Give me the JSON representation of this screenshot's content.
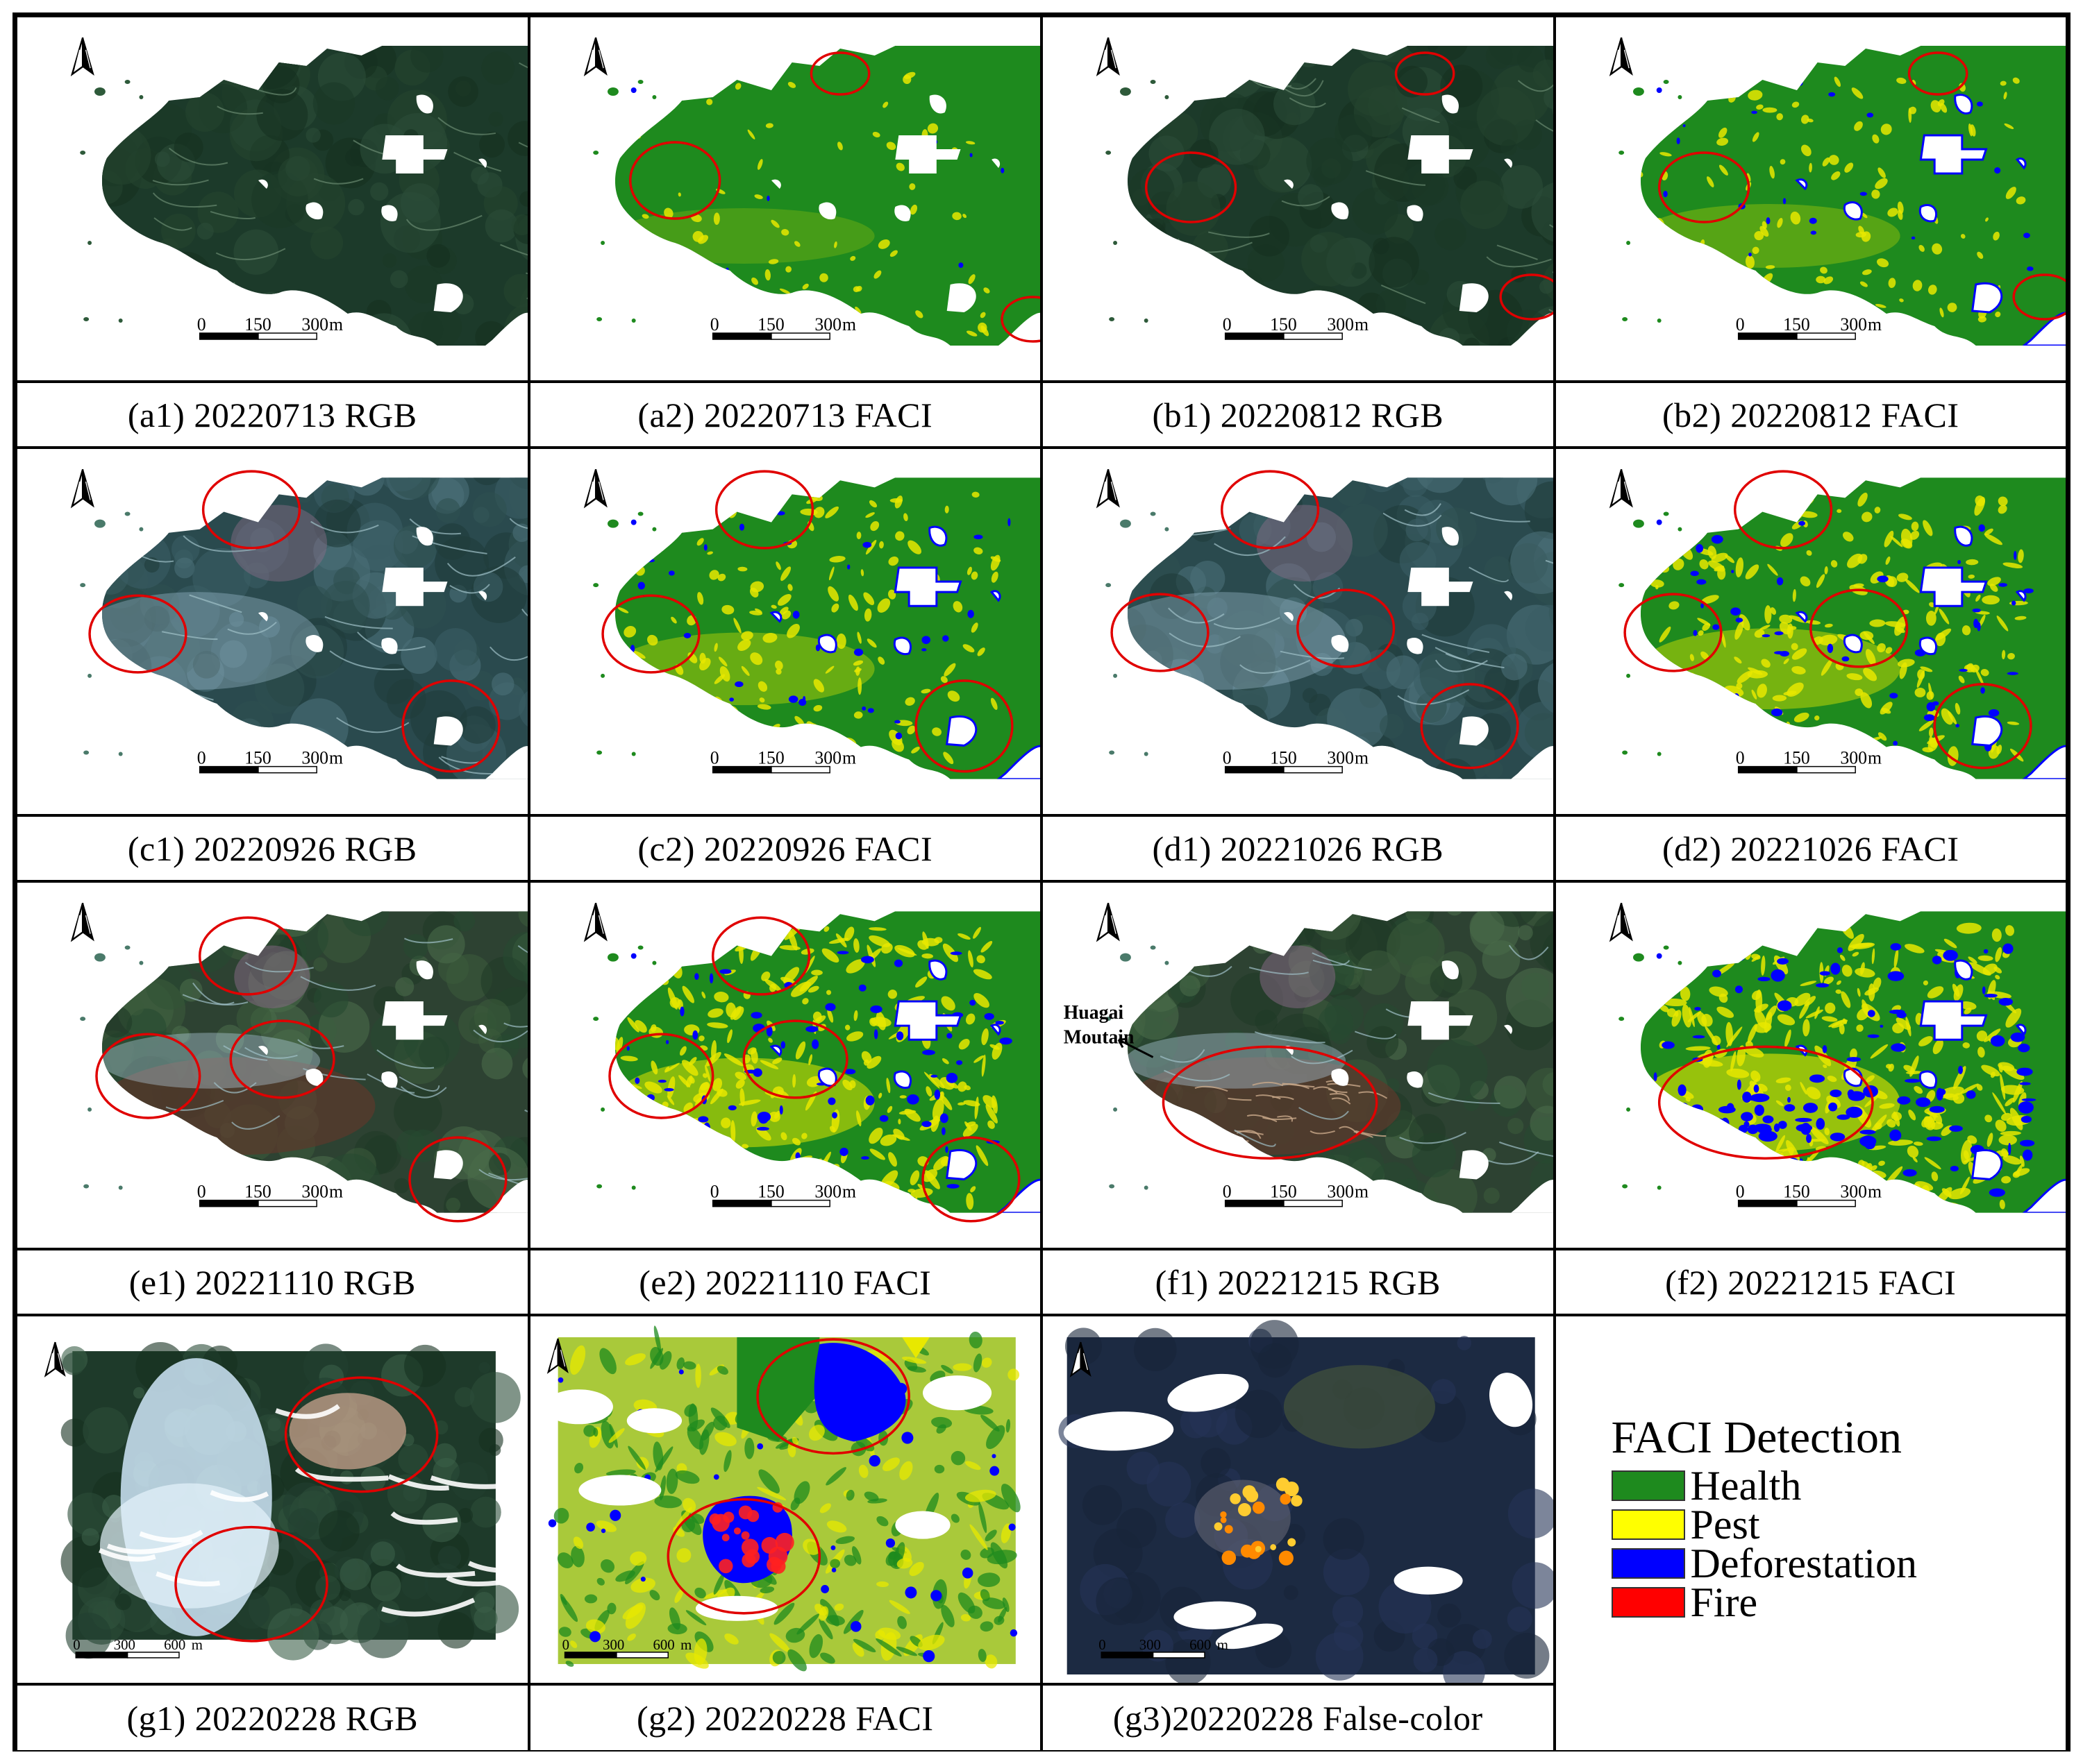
{
  "panels": [
    {
      "id": "a1",
      "caption": "(a1) 20220713 RGB",
      "kind": "rgb",
      "tone": "dark",
      "scale": [
        "0",
        "150",
        "300",
        "m"
      ]
    },
    {
      "id": "a2",
      "caption": "(a2) 20220713 FACI",
      "kind": "faci",
      "stage": 0,
      "scale": [
        "0",
        "150",
        "300",
        "m"
      ]
    },
    {
      "id": "b1",
      "caption": "(b1) 20220812 RGB",
      "kind": "rgb",
      "tone": "dark",
      "scale": [
        "0",
        "150",
        "300",
        "m"
      ]
    },
    {
      "id": "b2",
      "caption": "(b2) 20220812 FACI",
      "kind": "faci",
      "stage": 1,
      "scale": [
        "0",
        "150",
        "300",
        "m"
      ]
    },
    {
      "id": "c1",
      "caption": "(c1) 20220926 RGB",
      "kind": "rgb",
      "tone": "hazy",
      "scale": [
        "0",
        "150",
        "300",
        "m"
      ]
    },
    {
      "id": "c2",
      "caption": "(c2) 20220926 FACI",
      "kind": "faci",
      "stage": 2,
      "scale": [
        "0",
        "150",
        "300",
        "m"
      ]
    },
    {
      "id": "d1",
      "caption": "(d1) 20221026 RGB",
      "kind": "rgb",
      "tone": "hazy",
      "scale": [
        "0",
        "150",
        "300",
        "m"
      ]
    },
    {
      "id": "d2",
      "caption": "(d2) 20221026 FACI",
      "kind": "faci",
      "stage": 3,
      "scale": [
        "0",
        "150",
        "300",
        "m"
      ]
    },
    {
      "id": "e1",
      "caption": "(e1) 20221110 RGB",
      "kind": "rgb",
      "tone": "brown",
      "scale": [
        "0",
        "150",
        "300",
        "m"
      ]
    },
    {
      "id": "e2",
      "caption": "(e2) 20221110 FACI",
      "kind": "faci",
      "stage": 4,
      "scale": [
        "0",
        "150",
        "300",
        "m"
      ]
    },
    {
      "id": "f1",
      "caption": "(f1) 20221215 RGB",
      "kind": "rgb",
      "tone": "brown",
      "scale": [
        "0",
        "150",
        "300",
        "m"
      ],
      "annotation": [
        "Huagai",
        "Moutain"
      ]
    },
    {
      "id": "f2",
      "caption": "(f2) 20221215 FACI",
      "kind": "faci",
      "stage": 5,
      "scale": [
        "0",
        "150",
        "300",
        "m"
      ]
    },
    {
      "id": "g1",
      "caption": "(g1) 20220228 RGB",
      "kind": "rgb2",
      "scale": [
        "0",
        "300",
        "600",
        "m"
      ]
    },
    {
      "id": "g2",
      "caption": "(g2) 20220228 FACI",
      "kind": "faci2",
      "scale": [
        "0",
        "300",
        "600",
        "m"
      ]
    },
    {
      "id": "g3",
      "caption": "(g3)20220228 False-color",
      "kind": "false",
      "scale": [
        "0",
        "300",
        "600",
        "m"
      ]
    }
  ],
  "legend": {
    "title": "FACI Detection",
    "items": [
      {
        "label": "Health",
        "color": "#1e8a1e"
      },
      {
        "label": "Pest",
        "color": "#ffff00"
      },
      {
        "label": "Deforestation",
        "color": "#0000ff"
      },
      {
        "label": "Fire",
        "color": "#ff0000"
      }
    ]
  },
  "colors": {
    "health": "#1e8a1e",
    "pest": "#e8e800",
    "deforestation": "#0000ff",
    "fire": "#ff2020",
    "circle": "#e00000"
  }
}
